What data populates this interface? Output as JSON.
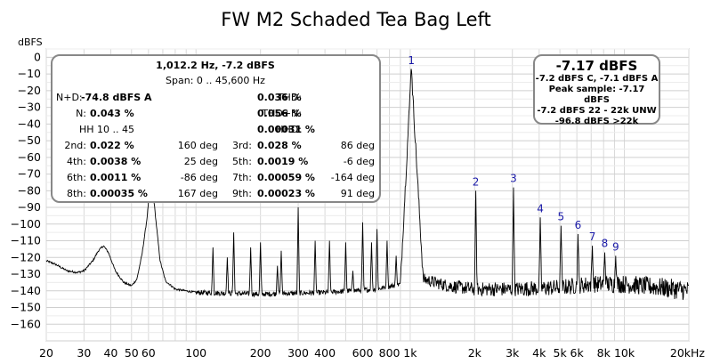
{
  "chart_data": {
    "type": "line",
    "title": "FW M2 Schaded Tea Bag Left",
    "ylabel": "dBFS",
    "xlabel": "",
    "x_scale": "log",
    "xlim": [
      20,
      20000
    ],
    "ylim": [
      -170,
      5
    ],
    "grid": true,
    "x_ticks": [
      {
        "value": 20,
        "label": "20"
      },
      {
        "value": 30,
        "label": "30"
      },
      {
        "value": 40,
        "label": "40"
      },
      {
        "value": 50,
        "label": "50"
      },
      {
        "value": 60,
        "label": "60"
      },
      {
        "value": 100,
        "label": "100"
      },
      {
        "value": 200,
        "label": "200"
      },
      {
        "value": 300,
        "label": "300"
      },
      {
        "value": 400,
        "label": "400"
      },
      {
        "value": 600,
        "label": "600"
      },
      {
        "value": 800,
        "label": "800"
      },
      {
        "value": 1000,
        "label": "1k"
      },
      {
        "value": 2000,
        "label": "2k"
      },
      {
        "value": 3000,
        "label": "3k"
      },
      {
        "value": 4000,
        "label": "4k"
      },
      {
        "value": 5000,
        "label": "5k"
      },
      {
        "value": 6000,
        "label": "6k"
      },
      {
        "value": 8000,
        "label": "8k"
      },
      {
        "value": 10000,
        "label": "10k"
      },
      {
        "value": 20000,
        "label": "20kHz"
      }
    ],
    "y_ticks": [
      0,
      -10,
      -20,
      -30,
      -40,
      -50,
      -60,
      -70,
      -80,
      -90,
      -100,
      -110,
      -120,
      -130,
      -140,
      -150,
      -160
    ],
    "baseline": [
      [
        20,
        -122
      ],
      [
        22,
        -124
      ],
      [
        25,
        -128
      ],
      [
        28,
        -129
      ],
      [
        30,
        -128
      ],
      [
        33,
        -122
      ],
      [
        35,
        -116
      ],
      [
        37,
        -113
      ],
      [
        39,
        -117
      ],
      [
        42,
        -128
      ],
      [
        46,
        -135
      ],
      [
        50,
        -137
      ],
      [
        53,
        -133
      ],
      [
        56,
        -118
      ],
      [
        59,
        -97
      ],
      [
        61,
        -77
      ],
      [
        63,
        -80
      ],
      [
        65,
        -98
      ],
      [
        68,
        -122
      ],
      [
        72,
        -134
      ],
      [
        80,
        -139
      ],
      [
        100,
        -141
      ],
      [
        200,
        -142
      ],
      [
        400,
        -141
      ],
      [
        700,
        -139
      ],
      [
        900,
        -136
      ],
      [
        1012,
        -7.2
      ],
      [
        1150,
        -133
      ],
      [
        1500,
        -137
      ],
      [
        2000,
        -139
      ],
      [
        3000,
        -139
      ],
      [
        5000,
        -138
      ],
      [
        7000,
        -136
      ],
      [
        10000,
        -136
      ],
      [
        15000,
        -138
      ],
      [
        20000,
        -140
      ]
    ],
    "spur_peaks": [
      [
        120,
        -114
      ],
      [
        140,
        -120
      ],
      [
        150,
        -105
      ],
      [
        180,
        -114
      ],
      [
        200,
        -111
      ],
      [
        240,
        -125
      ],
      [
        250,
        -116
      ],
      [
        300,
        -90
      ],
      [
        360,
        -110
      ],
      [
        420,
        -110
      ],
      [
        500,
        -111
      ],
      [
        540,
        -128
      ],
      [
        600,
        -99
      ],
      [
        660,
        -111
      ],
      [
        700,
        -103
      ],
      [
        780,
        -110
      ],
      [
        860,
        -119
      ]
    ],
    "harmonics": [
      {
        "label": "1",
        "freq": 1012.2,
        "level": -7.2
      },
      {
        "label": "2",
        "freq": 2024.4,
        "level": -80
      },
      {
        "label": "3",
        "freq": 3036.6,
        "level": -78
      },
      {
        "label": "4",
        "freq": 4048.8,
        "level": -96
      },
      {
        "label": "5",
        "freq": 5061,
        "level": -101
      },
      {
        "label": "6",
        "freq": 6073.2,
        "level": -106
      },
      {
        "label": "7",
        "freq": 7085.4,
        "level": -113
      },
      {
        "label": "8",
        "freq": 8097.6,
        "level": -117
      },
      {
        "label": "9",
        "freq": 9109.8,
        "level": -119
      }
    ]
  },
  "stats": {
    "header": "1,012.2 Hz, -7.2 dBFS",
    "span": "Span: 0 .. 45,600 Hz",
    "nd_label": "N+D:",
    "nd_value": "-74.8 dBFS A",
    "thd_label": "THD:",
    "thd_value": "0.036 %",
    "n_label": "N:",
    "n_value": "0.043 %",
    "thdn_label": "THD+N:",
    "thdn_value": "0.056 %",
    "hh_label": "HH 10 .. 45",
    "hhd_label": "HHD:",
    "hhd_value": "0.00031 %",
    "h2_label": "2nd:",
    "h2_value": "0.022 %",
    "h2_phase": "160 deg",
    "h3_label": "3rd:",
    "h3_value": "0.028 %",
    "h3_phase": "86 deg",
    "h4_label": "4th:",
    "h4_value": "0.0038 %",
    "h4_phase": "25 deg",
    "h5_label": "5th:",
    "h5_value": "0.0019 %",
    "h5_phase": "-6 deg",
    "h6_label": "6th:",
    "h6_value": "0.0011 %",
    "h6_phase": "-86 deg",
    "h7_label": "7th:",
    "h7_value": "0.00059 %",
    "h7_phase": "-164 deg",
    "h8_label": "8th:",
    "h8_value": "0.00035 %",
    "h8_phase": "167 deg",
    "h9_label": "9th:",
    "h9_value": "0.00023 %",
    "h9_phase": "91 deg"
  },
  "level_box": {
    "main": "-7.17 dBFS",
    "line1": "-7.2 dBFS C, -7.1 dBFS A",
    "line2": "Peak sample: -7.17 dBFS",
    "line3": "-7.2 dBFS 22 - 22k UNW",
    "line4": "-96.8 dBFS >22k"
  }
}
